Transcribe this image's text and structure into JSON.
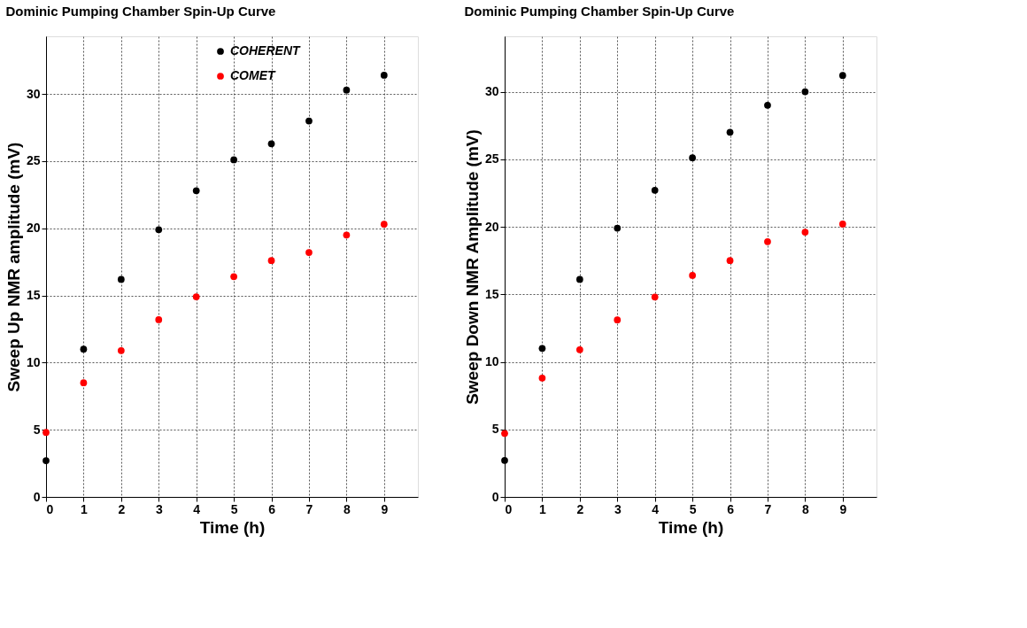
{
  "chart_data": [
    {
      "type": "scatter",
      "title": "Dominic Pumping Chamber Spin-Up Curve",
      "xlabel": "Time (h)",
      "ylabel": "Sweep Up NMR amplitude (mV)",
      "x": [
        0,
        1,
        2,
        3,
        4,
        5,
        6,
        7,
        8,
        9
      ],
      "xlim": [
        0,
        9.9
      ],
      "xticks": [
        0,
        1,
        2,
        3,
        4,
        5,
        6,
        7,
        8,
        9
      ],
      "ylim": [
        0,
        34.3
      ],
      "yticks": [
        0,
        5,
        10,
        15,
        20,
        25,
        30
      ],
      "grid": true,
      "marker": "circle",
      "legend": "top",
      "series": [
        {
          "name": "COHERENT",
          "color": "#000000",
          "values": [
            2.7,
            11.0,
            16.2,
            19.9,
            22.8,
            25.1,
            26.3,
            28.0,
            30.3,
            31.4
          ]
        },
        {
          "name": "COMET",
          "color": "#ff0000",
          "values": [
            4.8,
            8.5,
            10.9,
            13.2,
            14.9,
            16.4,
            17.6,
            18.2,
            19.5,
            20.3
          ]
        }
      ]
    },
    {
      "type": "scatter",
      "title": "Dominic Pumping Chamber Spin-Up Curve",
      "xlabel": "Time (h)",
      "ylabel": "Sweep Down NMR Amplitude (mV)",
      "x": [
        0,
        1,
        2,
        3,
        4,
        5,
        6,
        7,
        8,
        9
      ],
      "xlim": [
        0,
        9.9
      ],
      "xticks": [
        0,
        1,
        2,
        3,
        4,
        5,
        6,
        7,
        8,
        9
      ],
      "ylim": [
        0,
        34.1
      ],
      "yticks": [
        0,
        5,
        10,
        15,
        20,
        25,
        30
      ],
      "grid": true,
      "marker": "circle",
      "series": [
        {
          "color": "#000000",
          "values": [
            2.7,
            11.0,
            16.1,
            19.9,
            22.7,
            25.1,
            27.0,
            29.0,
            30.0,
            31.2
          ]
        },
        {
          "color": "#ff0000",
          "values": [
            4.7,
            8.8,
            10.9,
            13.1,
            14.8,
            16.4,
            17.5,
            18.9,
            19.6,
            20.2
          ]
        }
      ]
    }
  ]
}
